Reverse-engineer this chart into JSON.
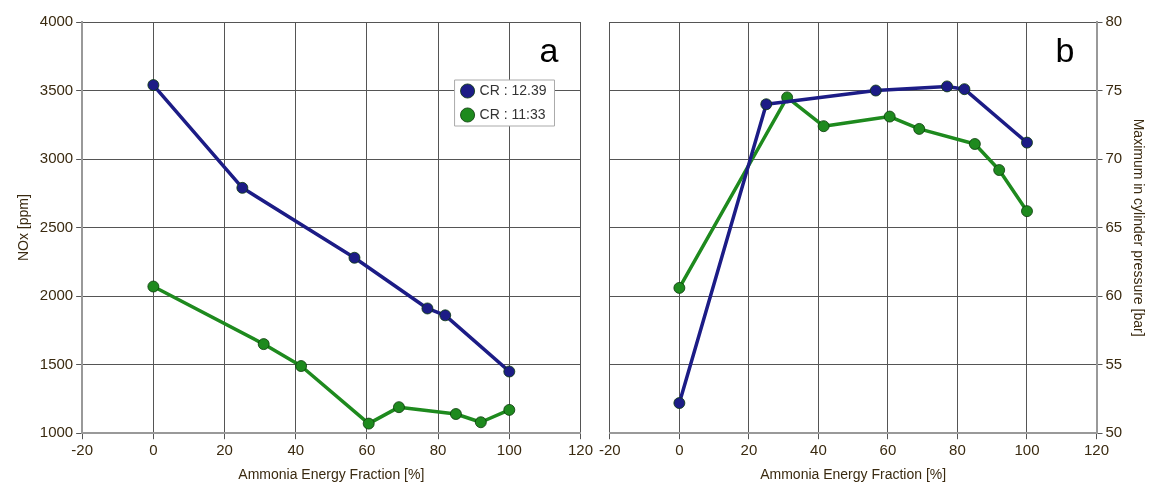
{
  "chart_data": [
    {
      "type": "line",
      "xlabel": "Ammonia Energy Fraction [%]",
      "ylabel": "NOx [ppm]",
      "annotations": [
        "a"
      ],
      "xlim": [
        -20,
        120
      ],
      "xticks": [
        -20,
        0,
        20,
        40,
        60,
        80,
        100,
        120
      ],
      "ylim": [
        1000,
        4000
      ],
      "yticks": [
        1000,
        1500,
        2000,
        2500,
        3000,
        3500,
        4000
      ],
      "grid": true,
      "legend": "top right",
      "marker": "circle",
      "series": [
        {
          "name": "CR : 12.39",
          "color": "#1c1c86",
          "x": [
            0,
            25,
            56.5,
            77,
            82,
            100
          ],
          "values": [
            3540,
            2790,
            2280,
            1910,
            1860,
            1450
          ]
        },
        {
          "name": "CR : 11:33",
          "color": "#1e8a1e",
          "x": [
            0,
            31,
            41.5,
            60.5,
            69,
            85,
            92,
            100
          ],
          "values": [
            2070,
            1650,
            1490,
            1070,
            1190,
            1140,
            1080,
            1170
          ]
        }
      ]
    },
    {
      "type": "line",
      "xlabel": "Ammonia Energy Fraction [%]",
      "y2label": "Maximum in cylinder pressure [bar]",
      "annotations": [
        "b"
      ],
      "xlim": [
        -20,
        120
      ],
      "xticks": [
        -20,
        0,
        20,
        40,
        60,
        80,
        100,
        120
      ],
      "y2lim": [
        50,
        80
      ],
      "y2ticks": [
        50,
        55,
        60,
        65,
        70,
        75,
        80
      ],
      "grid": true,
      "marker": "circle",
      "series": [
        {
          "color": "#1c1c86",
          "axis": "y2",
          "x": [
            0,
            25,
            56.5,
            77,
            82,
            100
          ],
          "values": [
            52.2,
            74.0,
            75.0,
            75.3,
            75.1,
            71.2
          ]
        },
        {
          "color": "#1e8a1e",
          "axis": "y2",
          "x": [
            0,
            31,
            41.5,
            60.5,
            69,
            85,
            92,
            100
          ],
          "values": [
            60.6,
            74.5,
            72.4,
            73.1,
            72.2,
            71.1,
            69.2,
            66.2
          ]
        }
      ]
    }
  ]
}
